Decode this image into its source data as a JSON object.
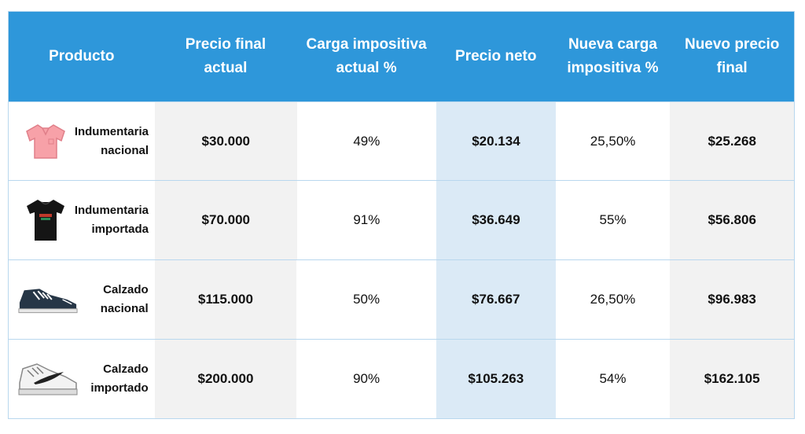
{
  "headers": {
    "producto": "Producto",
    "precio_final_1": "Precio final",
    "precio_final_2": "actual",
    "carga_1": "Carga impositiva",
    "carga_2": "actual %",
    "precio_neto": "Precio neto",
    "nueva_carga_1": "Nueva carga",
    "nueva_carga_2": "impositiva %",
    "nuevo_precio_1": "Nuevo precio",
    "nuevo_precio_2": "final"
  },
  "rows": [
    {
      "label_1": "Indumentaria",
      "label_2": "nacional",
      "icon": "pink-shirt-icon",
      "precio_final": "$30.000",
      "carga": "49%",
      "precio_neto": "$20.134",
      "nueva_carga": "25,50%",
      "nuevo_precio": "$25.268"
    },
    {
      "label_1": "Indumentaria",
      "label_2": "importada",
      "icon": "black-tshirt-icon",
      "precio_final": "$70.000",
      "carga": "91%",
      "precio_neto": "$36.649",
      "nueva_carga": "55%",
      "nuevo_precio": "$56.806"
    },
    {
      "label_1": "Calzado",
      "label_2": "nacional",
      "icon": "sneaker-icon",
      "precio_final": "$115.000",
      "carga": "50%",
      "precio_neto": "$76.667",
      "nueva_carga": "26,50%",
      "nuevo_precio": "$96.983"
    },
    {
      "label_1": "Calzado",
      "label_2": "importado",
      "icon": "running-shoe-icon",
      "precio_final": "$200.000",
      "carga": "90%",
      "precio_neto": "$105.263",
      "nueva_carga": "54%",
      "nuevo_precio": "$162.105"
    }
  ],
  "colors": {
    "header": "#2e97da",
    "grey_col": "#f2f2f2",
    "blue_col": "#dbeaf6"
  }
}
